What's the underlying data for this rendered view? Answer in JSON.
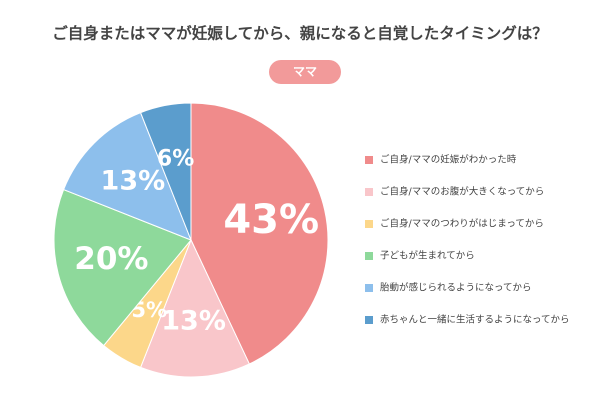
{
  "chart_data": {
    "type": "pie",
    "title": "ご自身またはママが妊娠してから、親になると自覚したタイミングは？",
    "subtitle": "ママ",
    "categories": [
      "ご自身/ママの妊娠がわかった時",
      "ご自身/ママのお腹が大きくなってから",
      "ご自身/ママのつわりがはじまってから",
      "子どもが生まれてから",
      "胎動が感じられるようになってから",
      "赤ちゃんと一緒に生活するようになってから"
    ],
    "values": [
      43,
      13,
      5,
      20,
      13,
      6
    ],
    "value_labels": [
      "43%",
      "13%",
      "5%",
      "20%",
      "13%",
      "6%"
    ],
    "colors": [
      "#f08b8b",
      "#f9c6ca",
      "#fcd78a",
      "#8ed99b",
      "#8dbfec",
      "#5b9dcd"
    ],
    "legend": "right"
  }
}
